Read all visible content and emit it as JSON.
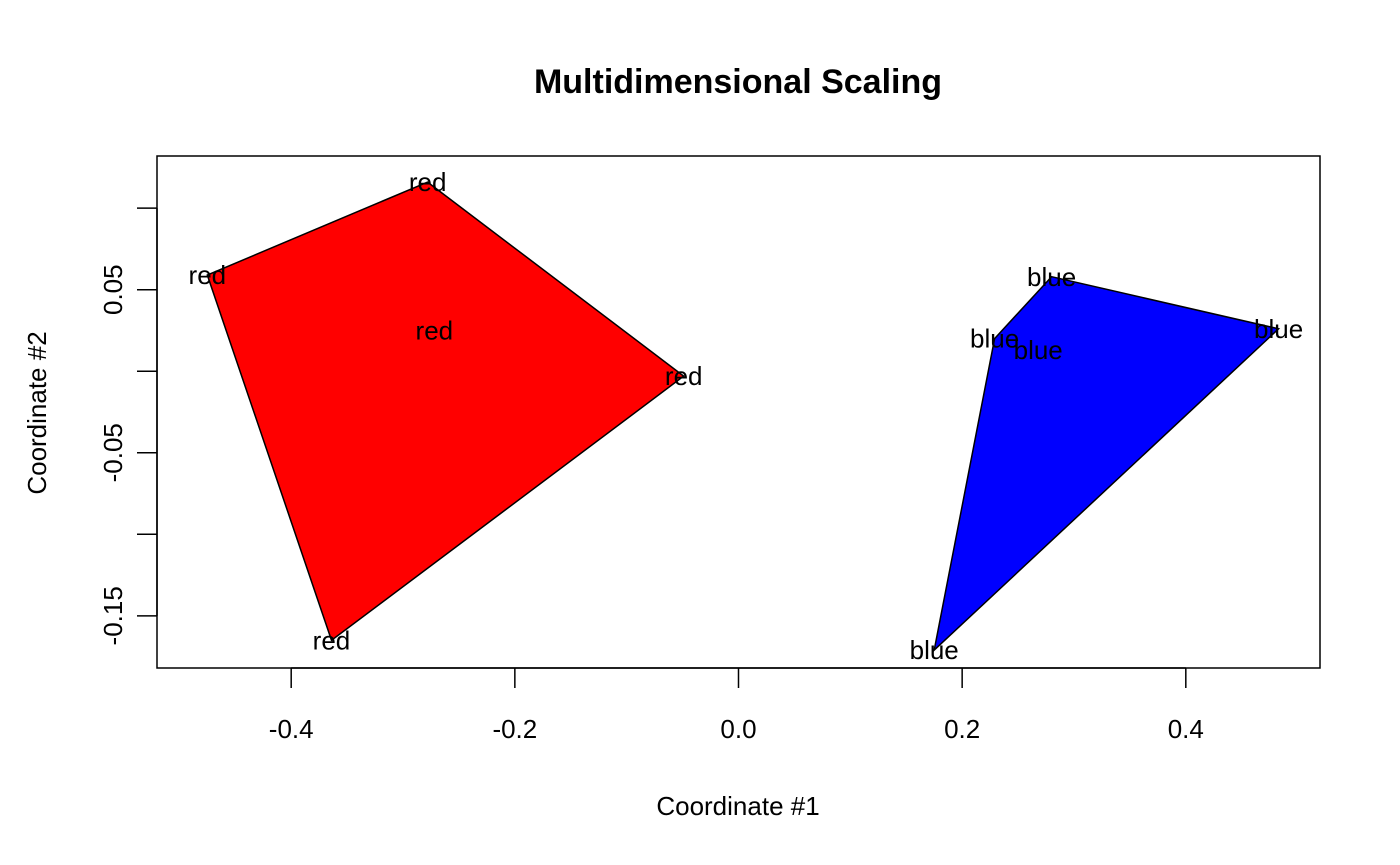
{
  "chart_data": {
    "type": "scatter",
    "title": "Multidimensional Scaling",
    "xlabel": "Coordinate #1",
    "ylabel": "Coordinate #2",
    "xlim": [
      -0.52,
      0.52
    ],
    "ylim": [
      -0.182,
      0.132
    ],
    "xticks": [
      -0.4,
      -0.2,
      0.0,
      0.2,
      0.4
    ],
    "xtick_labels": [
      "-0.4",
      "-0.2",
      "0.0",
      "0.2",
      "0.4"
    ],
    "yticks": [
      -0.15,
      -0.1,
      -0.05,
      0.0,
      0.05,
      0.1
    ],
    "ytick_labels": [
      "-0.15",
      "",
      "-0.05",
      "",
      "0.05",
      ""
    ],
    "grid": false,
    "series": [
      {
        "name": "red",
        "color": "#ff0000",
        "points": [
          {
            "x": -0.278,
            "y": 0.116,
            "label": "red"
          },
          {
            "x": -0.475,
            "y": 0.059,
            "label": "red"
          },
          {
            "x": -0.272,
            "y": 0.025,
            "label": "red"
          },
          {
            "x": -0.049,
            "y": -0.003,
            "label": "red"
          },
          {
            "x": -0.364,
            "y": -0.165,
            "label": "red"
          }
        ],
        "hull": [
          0,
          3,
          4,
          1
        ]
      },
      {
        "name": "blue",
        "color": "#0000ff",
        "points": [
          {
            "x": 0.28,
            "y": 0.058,
            "label": "blue"
          },
          {
            "x": 0.483,
            "y": 0.026,
            "label": "blue"
          },
          {
            "x": 0.229,
            "y": 0.02,
            "label": "blue"
          },
          {
            "x": 0.268,
            "y": 0.013,
            "label": "blue"
          },
          {
            "x": 0.175,
            "y": -0.171,
            "label": "blue"
          }
        ],
        "hull": [
          0,
          1,
          4,
          2
        ]
      }
    ]
  }
}
